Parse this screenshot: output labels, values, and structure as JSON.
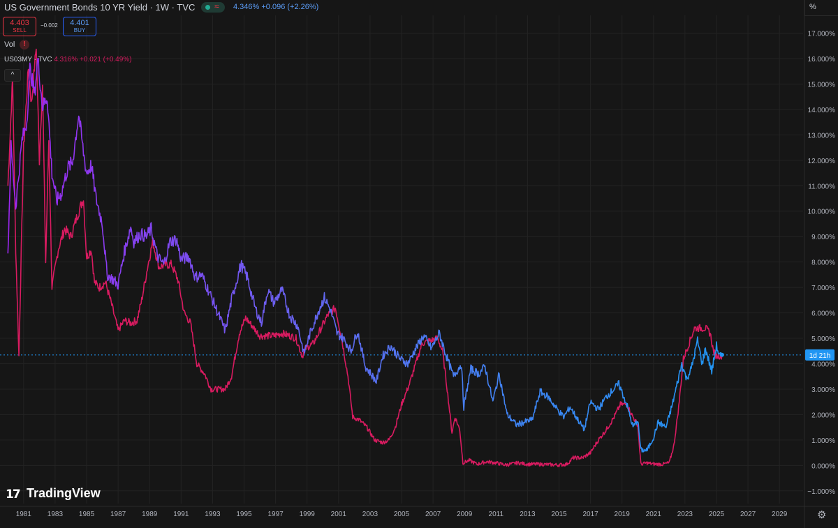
{
  "header": {
    "title": "US Government Bonds 10 YR Yield · 1W · TVC",
    "quote": "4.346% +0.096 (+2.26%)",
    "axis_unit": "%"
  },
  "trade": {
    "sell_price": "4.403",
    "sell_label": "SELL",
    "spread": "−0.002",
    "buy_price": "4.401",
    "buy_label": "BUY"
  },
  "indicators": {
    "vol_label": "Vol",
    "vol_warning": "!",
    "compare_symbol": "US03MY · TVC",
    "compare_quote": "4.316% +0.021 (+0.49%)",
    "collapse_icon": "^"
  },
  "branding": {
    "logo_mark": "17",
    "name": "TradingView"
  },
  "colors": {
    "background": "#161616",
    "us10y_start": "#9c27f0",
    "us10y_end": "#2196f3",
    "us03my": "#d81b60",
    "last_price_tag": "#2196f3",
    "grid": "#232323"
  },
  "chart_data": {
    "type": "line",
    "xlabel": "",
    "ylabel": "",
    "x_ticks": [
      "1981",
      "1983",
      "1985",
      "1987",
      "1989",
      "1991",
      "1993",
      "1995",
      "1997",
      "1999",
      "2001",
      "2003",
      "2005",
      "2007",
      "2009",
      "2011",
      "2013",
      "2015",
      "2017",
      "2019",
      "2021",
      "2023",
      "2025",
      "2027",
      "2029"
    ],
    "y_ticks": [
      "17.000%",
      "16.000%",
      "15.000%",
      "14.000%",
      "13.000%",
      "12.000%",
      "11.000%",
      "10.000%",
      "9.000%",
      "8.000%",
      "7.000%",
      "6.000%",
      "5.000%",
      "4.000%",
      "3.000%",
      "2.000%",
      "1.000%",
      "0.000%",
      "−1.000%"
    ],
    "ylim": [
      -1.5,
      17.7
    ],
    "xlim": [
      1979.5,
      2030.5
    ],
    "grid": true,
    "last_value_tag": "1d 21h",
    "last_value": 4.346,
    "series": [
      {
        "name": "US Government Bonds 10 YR Yield",
        "points": [
          [
            1980.0,
            8.3
          ],
          [
            1980.2,
            12.5
          ],
          [
            1980.5,
            10.2
          ],
          [
            1980.9,
            12.8
          ],
          [
            1981.2,
            13.5
          ],
          [
            1981.4,
            15.6
          ],
          [
            1981.7,
            14.6
          ],
          [
            1981.9,
            16.0
          ],
          [
            1982.2,
            14.1
          ],
          [
            1982.5,
            14.5
          ],
          [
            1982.8,
            11.5
          ],
          [
            1983.1,
            10.4
          ],
          [
            1983.4,
            10.7
          ],
          [
            1983.8,
            11.7
          ],
          [
            1984.1,
            11.9
          ],
          [
            1984.5,
            13.8
          ],
          [
            1984.8,
            12.3
          ],
          [
            1985.0,
            11.5
          ],
          [
            1985.3,
            11.8
          ],
          [
            1985.6,
            10.5
          ],
          [
            1986.0,
            9.5
          ],
          [
            1986.3,
            7.5
          ],
          [
            1986.7,
            7.3
          ],
          [
            1987.0,
            7.1
          ],
          [
            1987.4,
            8.4
          ],
          [
            1987.8,
            9.4
          ],
          [
            1988.0,
            8.8
          ],
          [
            1988.4,
            9.1
          ],
          [
            1988.8,
            9.0
          ],
          [
            1989.1,
            9.3
          ],
          [
            1989.5,
            8.2
          ],
          [
            1989.9,
            7.9
          ],
          [
            1990.3,
            8.8
          ],
          [
            1990.7,
            8.9
          ],
          [
            1991.0,
            8.1
          ],
          [
            1991.5,
            8.2
          ],
          [
            1991.9,
            7.4
          ],
          [
            1992.3,
            7.5
          ],
          [
            1992.8,
            6.8
          ],
          [
            1993.2,
            6.2
          ],
          [
            1993.8,
            5.3
          ],
          [
            1994.2,
            6.5
          ],
          [
            1994.8,
            7.9
          ],
          [
            1995.2,
            7.4
          ],
          [
            1995.7,
            6.2
          ],
          [
            1996.1,
            5.6
          ],
          [
            1996.5,
            6.9
          ],
          [
            1996.9,
            6.4
          ],
          [
            1997.4,
            6.9
          ],
          [
            1997.9,
            5.9
          ],
          [
            1998.4,
            5.5
          ],
          [
            1998.8,
            4.4
          ],
          [
            1999.2,
            5.2
          ],
          [
            1999.8,
            6.2
          ],
          [
            2000.1,
            6.6
          ],
          [
            2000.5,
            6.1
          ],
          [
            2000.9,
            5.2
          ],
          [
            2001.3,
            5.0
          ],
          [
            2001.8,
            4.5
          ],
          [
            2002.2,
            5.3
          ],
          [
            2002.7,
            3.9
          ],
          [
            2003.4,
            3.3
          ],
          [
            2003.8,
            4.3
          ],
          [
            2004.3,
            4.7
          ],
          [
            2004.9,
            4.2
          ],
          [
            2005.4,
            4.0
          ],
          [
            2005.9,
            4.6
          ],
          [
            2006.4,
            5.1
          ],
          [
            2006.9,
            4.6
          ],
          [
            2007.4,
            5.2
          ],
          [
            2007.9,
            4.2
          ],
          [
            2008.3,
            3.5
          ],
          [
            2008.8,
            4.0
          ],
          [
            2008.95,
            2.3
          ],
          [
            2009.4,
            3.8
          ],
          [
            2009.9,
            3.6
          ],
          [
            2010.3,
            3.9
          ],
          [
            2010.8,
            2.5
          ],
          [
            2011.2,
            3.6
          ],
          [
            2011.7,
            2.0
          ],
          [
            2012.3,
            1.6
          ],
          [
            2012.8,
            1.7
          ],
          [
            2013.3,
            1.8
          ],
          [
            2013.8,
            2.9
          ],
          [
            2014.3,
            2.7
          ],
          [
            2014.9,
            2.2
          ],
          [
            2015.3,
            1.9
          ],
          [
            2015.7,
            2.3
          ],
          [
            2016.2,
            1.8
          ],
          [
            2016.6,
            1.4
          ],
          [
            2017.0,
            2.5
          ],
          [
            2017.5,
            2.2
          ],
          [
            2018.0,
            2.7
          ],
          [
            2018.8,
            3.2
          ],
          [
            2019.3,
            2.4
          ],
          [
            2019.7,
            1.5
          ],
          [
            2020.0,
            1.8
          ],
          [
            2020.2,
            0.6
          ],
          [
            2020.6,
            0.6
          ],
          [
            2021.0,
            1.1
          ],
          [
            2021.3,
            1.7
          ],
          [
            2021.8,
            1.5
          ],
          [
            2022.2,
            2.4
          ],
          [
            2022.8,
            4.0
          ],
          [
            2023.1,
            3.4
          ],
          [
            2023.4,
            3.8
          ],
          [
            2023.8,
            4.9
          ],
          [
            2024.1,
            4.0
          ],
          [
            2024.3,
            4.6
          ],
          [
            2024.7,
            3.7
          ],
          [
            2025.0,
            4.7
          ],
          [
            2025.2,
            4.3
          ],
          [
            2025.35,
            4.35
          ]
        ]
      },
      {
        "name": "US03MY · TVC",
        "points": [
          [
            1980.0,
            11.0
          ],
          [
            1980.3,
            15.2
          ],
          [
            1980.5,
            8.5
          ],
          [
            1980.7,
            4.3
          ],
          [
            1981.0,
            12.5
          ],
          [
            1981.3,
            15.6
          ],
          [
            1981.5,
            14.2
          ],
          [
            1981.8,
            16.5
          ],
          [
            1982.0,
            12.0
          ],
          [
            1982.2,
            15.0
          ],
          [
            1982.4,
            8.0
          ],
          [
            1982.6,
            12.8
          ],
          [
            1982.8,
            7.0
          ],
          [
            1983.2,
            8.5
          ],
          [
            1983.6,
            9.3
          ],
          [
            1984.0,
            9.0
          ],
          [
            1984.4,
            9.8
          ],
          [
            1984.8,
            10.5
          ],
          [
            1985.0,
            8.2
          ],
          [
            1985.3,
            8.5
          ],
          [
            1985.5,
            7.2
          ],
          [
            1985.8,
            7.0
          ],
          [
            1986.2,
            7.2
          ],
          [
            1986.6,
            6.3
          ],
          [
            1987.0,
            5.3
          ],
          [
            1987.4,
            5.7
          ],
          [
            1987.8,
            5.6
          ],
          [
            1988.2,
            5.7
          ],
          [
            1988.5,
            6.5
          ],
          [
            1988.9,
            7.9
          ],
          [
            1989.2,
            8.8
          ],
          [
            1989.6,
            7.8
          ],
          [
            1990.0,
            7.9
          ],
          [
            1990.4,
            7.9
          ],
          [
            1990.8,
            7.3
          ],
          [
            1991.2,
            6.0
          ],
          [
            1991.6,
            5.6
          ],
          [
            1992.0,
            4.0
          ],
          [
            1992.5,
            3.6
          ],
          [
            1992.9,
            3.0
          ],
          [
            1993.3,
            3.0
          ],
          [
            1993.8,
            3.0
          ],
          [
            1994.2,
            3.5
          ],
          [
            1994.7,
            5.2
          ],
          [
            1995.1,
            5.8
          ],
          [
            1995.5,
            5.5
          ],
          [
            1996.0,
            5.1
          ],
          [
            1996.4,
            5.1
          ],
          [
            1996.9,
            5.1
          ],
          [
            1997.4,
            5.2
          ],
          [
            1997.9,
            5.1
          ],
          [
            1998.3,
            5.0
          ],
          [
            1998.7,
            4.3
          ],
          [
            1998.9,
            4.6
          ],
          [
            1999.4,
            4.8
          ],
          [
            1999.9,
            5.4
          ],
          [
            2000.3,
            5.9
          ],
          [
            2000.8,
            6.2
          ],
          [
            2001.2,
            5.0
          ],
          [
            2001.6,
            3.5
          ],
          [
            2001.9,
            1.9
          ],
          [
            2002.3,
            1.8
          ],
          [
            2002.8,
            1.5
          ],
          [
            2003.3,
            1.0
          ],
          [
            2003.8,
            0.9
          ],
          [
            2004.2,
            1.0
          ],
          [
            2004.6,
            1.5
          ],
          [
            2005.0,
            2.4
          ],
          [
            2005.5,
            3.2
          ],
          [
            2005.9,
            4.0
          ],
          [
            2006.3,
            4.8
          ],
          [
            2006.8,
            4.9
          ],
          [
            2007.3,
            5.0
          ],
          [
            2007.6,
            4.5
          ],
          [
            2007.9,
            3.0
          ],
          [
            2008.2,
            1.3
          ],
          [
            2008.4,
            1.9
          ],
          [
            2008.7,
            1.4
          ],
          [
            2008.9,
            0.1
          ],
          [
            2009.3,
            0.2
          ],
          [
            2009.8,
            0.05
          ],
          [
            2010.4,
            0.15
          ],
          [
            2011.0,
            0.1
          ],
          [
            2011.6,
            0.02
          ],
          [
            2012.4,
            0.1
          ],
          [
            2013.0,
            0.05
          ],
          [
            2013.8,
            0.05
          ],
          [
            2014.5,
            0.03
          ],
          [
            2015.0,
            0.02
          ],
          [
            2015.5,
            0.05
          ],
          [
            2015.9,
            0.3
          ],
          [
            2016.5,
            0.3
          ],
          [
            2017.0,
            0.5
          ],
          [
            2017.5,
            1.0
          ],
          [
            2018.0,
            1.4
          ],
          [
            2018.5,
            1.9
          ],
          [
            2018.9,
            2.4
          ],
          [
            2019.3,
            2.4
          ],
          [
            2019.7,
            1.9
          ],
          [
            2020.0,
            1.6
          ],
          [
            2020.2,
            0.05
          ],
          [
            2020.6,
            0.1
          ],
          [
            2021.0,
            0.05
          ],
          [
            2021.6,
            0.05
          ],
          [
            2022.0,
            0.1
          ],
          [
            2022.3,
            0.8
          ],
          [
            2022.6,
            2.3
          ],
          [
            2022.9,
            4.2
          ],
          [
            2023.2,
            4.7
          ],
          [
            2023.6,
            5.4
          ],
          [
            2023.9,
            5.4
          ],
          [
            2024.3,
            5.4
          ],
          [
            2024.6,
            5.2
          ],
          [
            2024.8,
            4.5
          ],
          [
            2025.0,
            4.3
          ],
          [
            2025.35,
            4.316
          ]
        ]
      }
    ]
  }
}
